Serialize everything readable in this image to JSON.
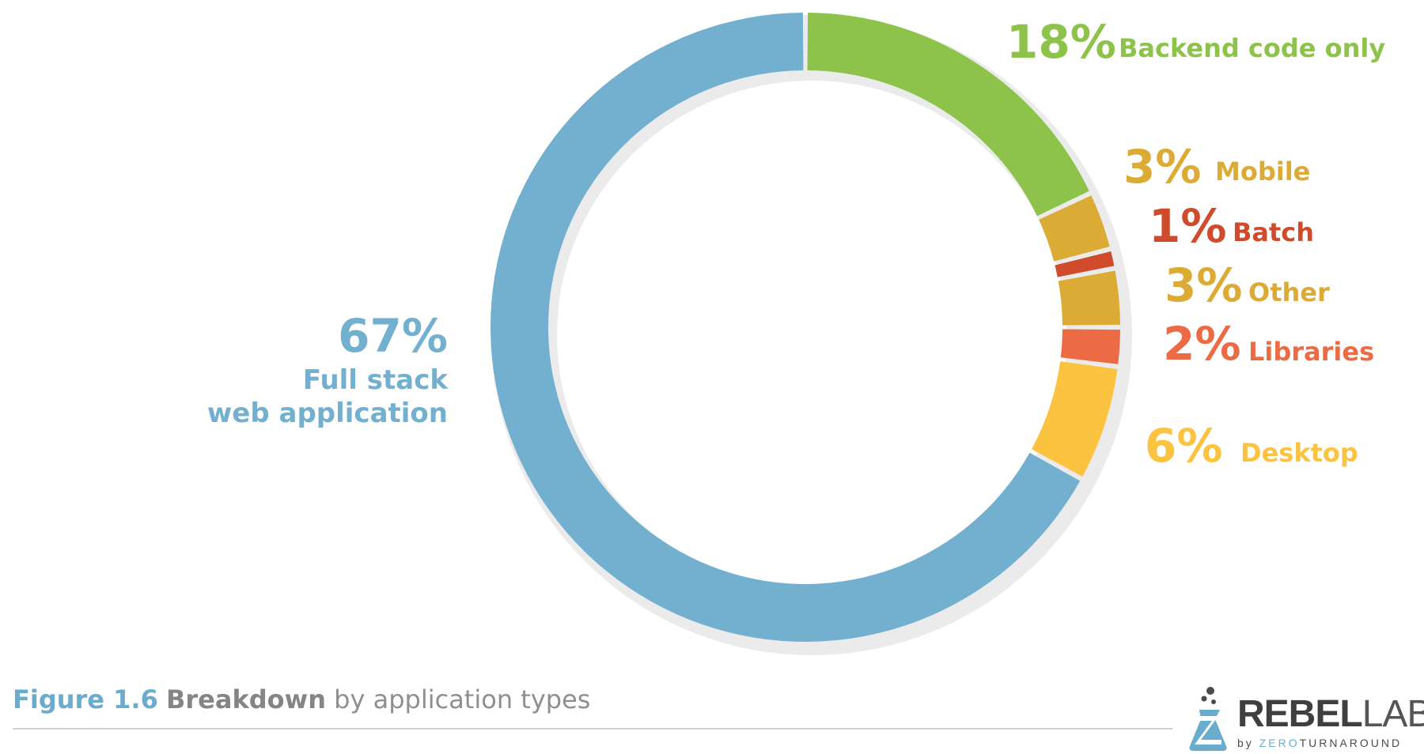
{
  "chart_data": {
    "type": "pie",
    "style": "donut",
    "slices": [
      {
        "label": "Backend code only",
        "value": 18,
        "value_label": "18%",
        "color": "#8dc34a"
      },
      {
        "label": "Mobile",
        "value": 3,
        "value_label": "3%",
        "color": "#dcab35"
      },
      {
        "label": "Batch",
        "value": 1,
        "value_label": "1%",
        "color": "#cf4b2b"
      },
      {
        "label": "Other",
        "value": 3,
        "value_label": "3%",
        "color": "#dcab35"
      },
      {
        "label": "Libraries",
        "value": 2,
        "value_label": "2%",
        "color": "#ec6b44"
      },
      {
        "label": "Desktop",
        "value": 6,
        "value_label": "6%",
        "color": "#fcc340"
      },
      {
        "label": "Full stack web application",
        "value": 67,
        "value_label": "67%",
        "color": "#73b0cf"
      }
    ],
    "full_stack_label_lines": [
      "Full stack",
      "web application"
    ]
  },
  "caption": {
    "figure_number": "Figure 1.6",
    "title": "Breakdown",
    "rest": "by application types"
  },
  "logo": {
    "rebel": "REBEL",
    "labs": "LABS",
    "by": "by",
    "zero": "ZERO",
    "turnaround": "TURNAROUND"
  },
  "colors": {
    "shadow": "#ebebeb",
    "caption_accent": "#6aaccd",
    "rule": "#d2d2d2"
  }
}
